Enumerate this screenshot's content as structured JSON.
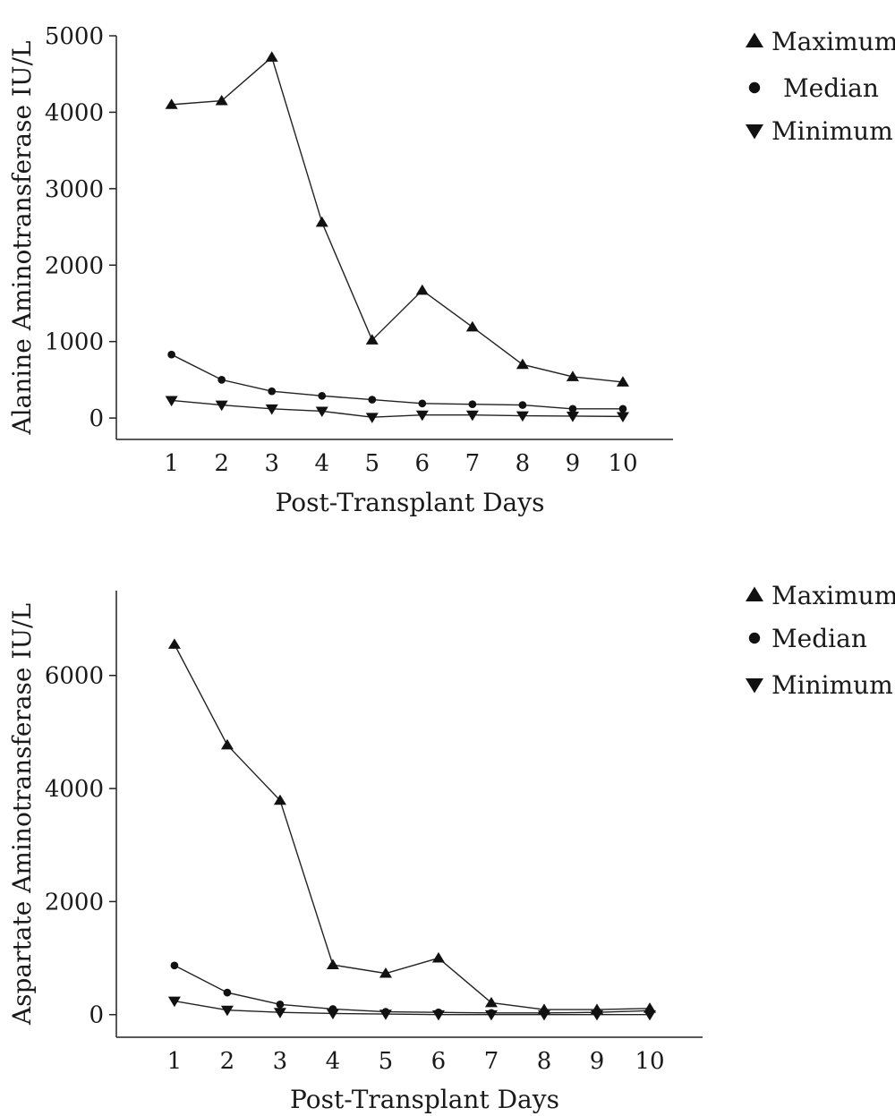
{
  "chart_data": [
    {
      "type": "line",
      "title": "",
      "xlabel": "Post-Transplant Days",
      "ylabel": "Alanine Aminotransferase IU/L",
      "x": [
        1,
        2,
        3,
        4,
        5,
        6,
        7,
        8,
        9,
        10
      ],
      "xticks": [
        "1",
        "2",
        "3",
        "4",
        "5",
        "6",
        "7",
        "8",
        "9",
        "10"
      ],
      "xlim": [
        -0.1,
        11.0
      ],
      "yticks": [
        0,
        1000,
        2000,
        3000,
        4000,
        5000
      ],
      "ytick_labels": [
        "0",
        "1000",
        "2000",
        "3000",
        "4000",
        "5000"
      ],
      "ylim": [
        -280,
        5000
      ],
      "grid": false,
      "legend_position": "top-right",
      "series": [
        {
          "name": "Maximum",
          "marker": "triangle-up",
          "values": [
            4100,
            4150,
            4720,
            2560,
            1020,
            1670,
            1190,
            700,
            540,
            470
          ]
        },
        {
          "name": "Median",
          "marker": "circle",
          "values": [
            830,
            500,
            350,
            290,
            240,
            190,
            180,
            170,
            120,
            120
          ]
        },
        {
          "name": "Minimum",
          "marker": "triangle-down",
          "values": [
            230,
            170,
            120,
            90,
            10,
            40,
            40,
            30,
            25,
            20
          ]
        }
      ]
    },
    {
      "type": "line",
      "title": "",
      "xlabel": "Post-Transplant Days",
      "ylabel": "Aspartate Aminotransferase IU/L",
      "x": [
        1,
        2,
        3,
        4,
        5,
        6,
        7,
        8,
        9,
        10
      ],
      "xticks": [
        "1",
        "2",
        "3",
        "4",
        "5",
        "6",
        "7",
        "8",
        "9",
        "10"
      ],
      "xlim": [
        -0.1,
        11.0
      ],
      "yticks": [
        0,
        2000,
        4000,
        6000
      ],
      "ytick_labels": [
        "0",
        "2000",
        "4000",
        "6000"
      ],
      "ylim": [
        -400,
        7500
      ],
      "grid": false,
      "legend_position": "top-right",
      "series": [
        {
          "name": "Maximum",
          "marker": "triangle-up",
          "values": [
            6550,
            4770,
            3790,
            880,
            730,
            1000,
            210,
            90,
            90,
            110
          ]
        },
        {
          "name": "Median",
          "marker": "circle",
          "values": [
            870,
            390,
            180,
            100,
            50,
            40,
            30,
            30,
            40,
            70
          ]
        },
        {
          "name": "Minimum",
          "marker": "triangle-down",
          "values": [
            240,
            80,
            40,
            20,
            10,
            0,
            0,
            0,
            0,
            0
          ]
        }
      ]
    }
  ]
}
